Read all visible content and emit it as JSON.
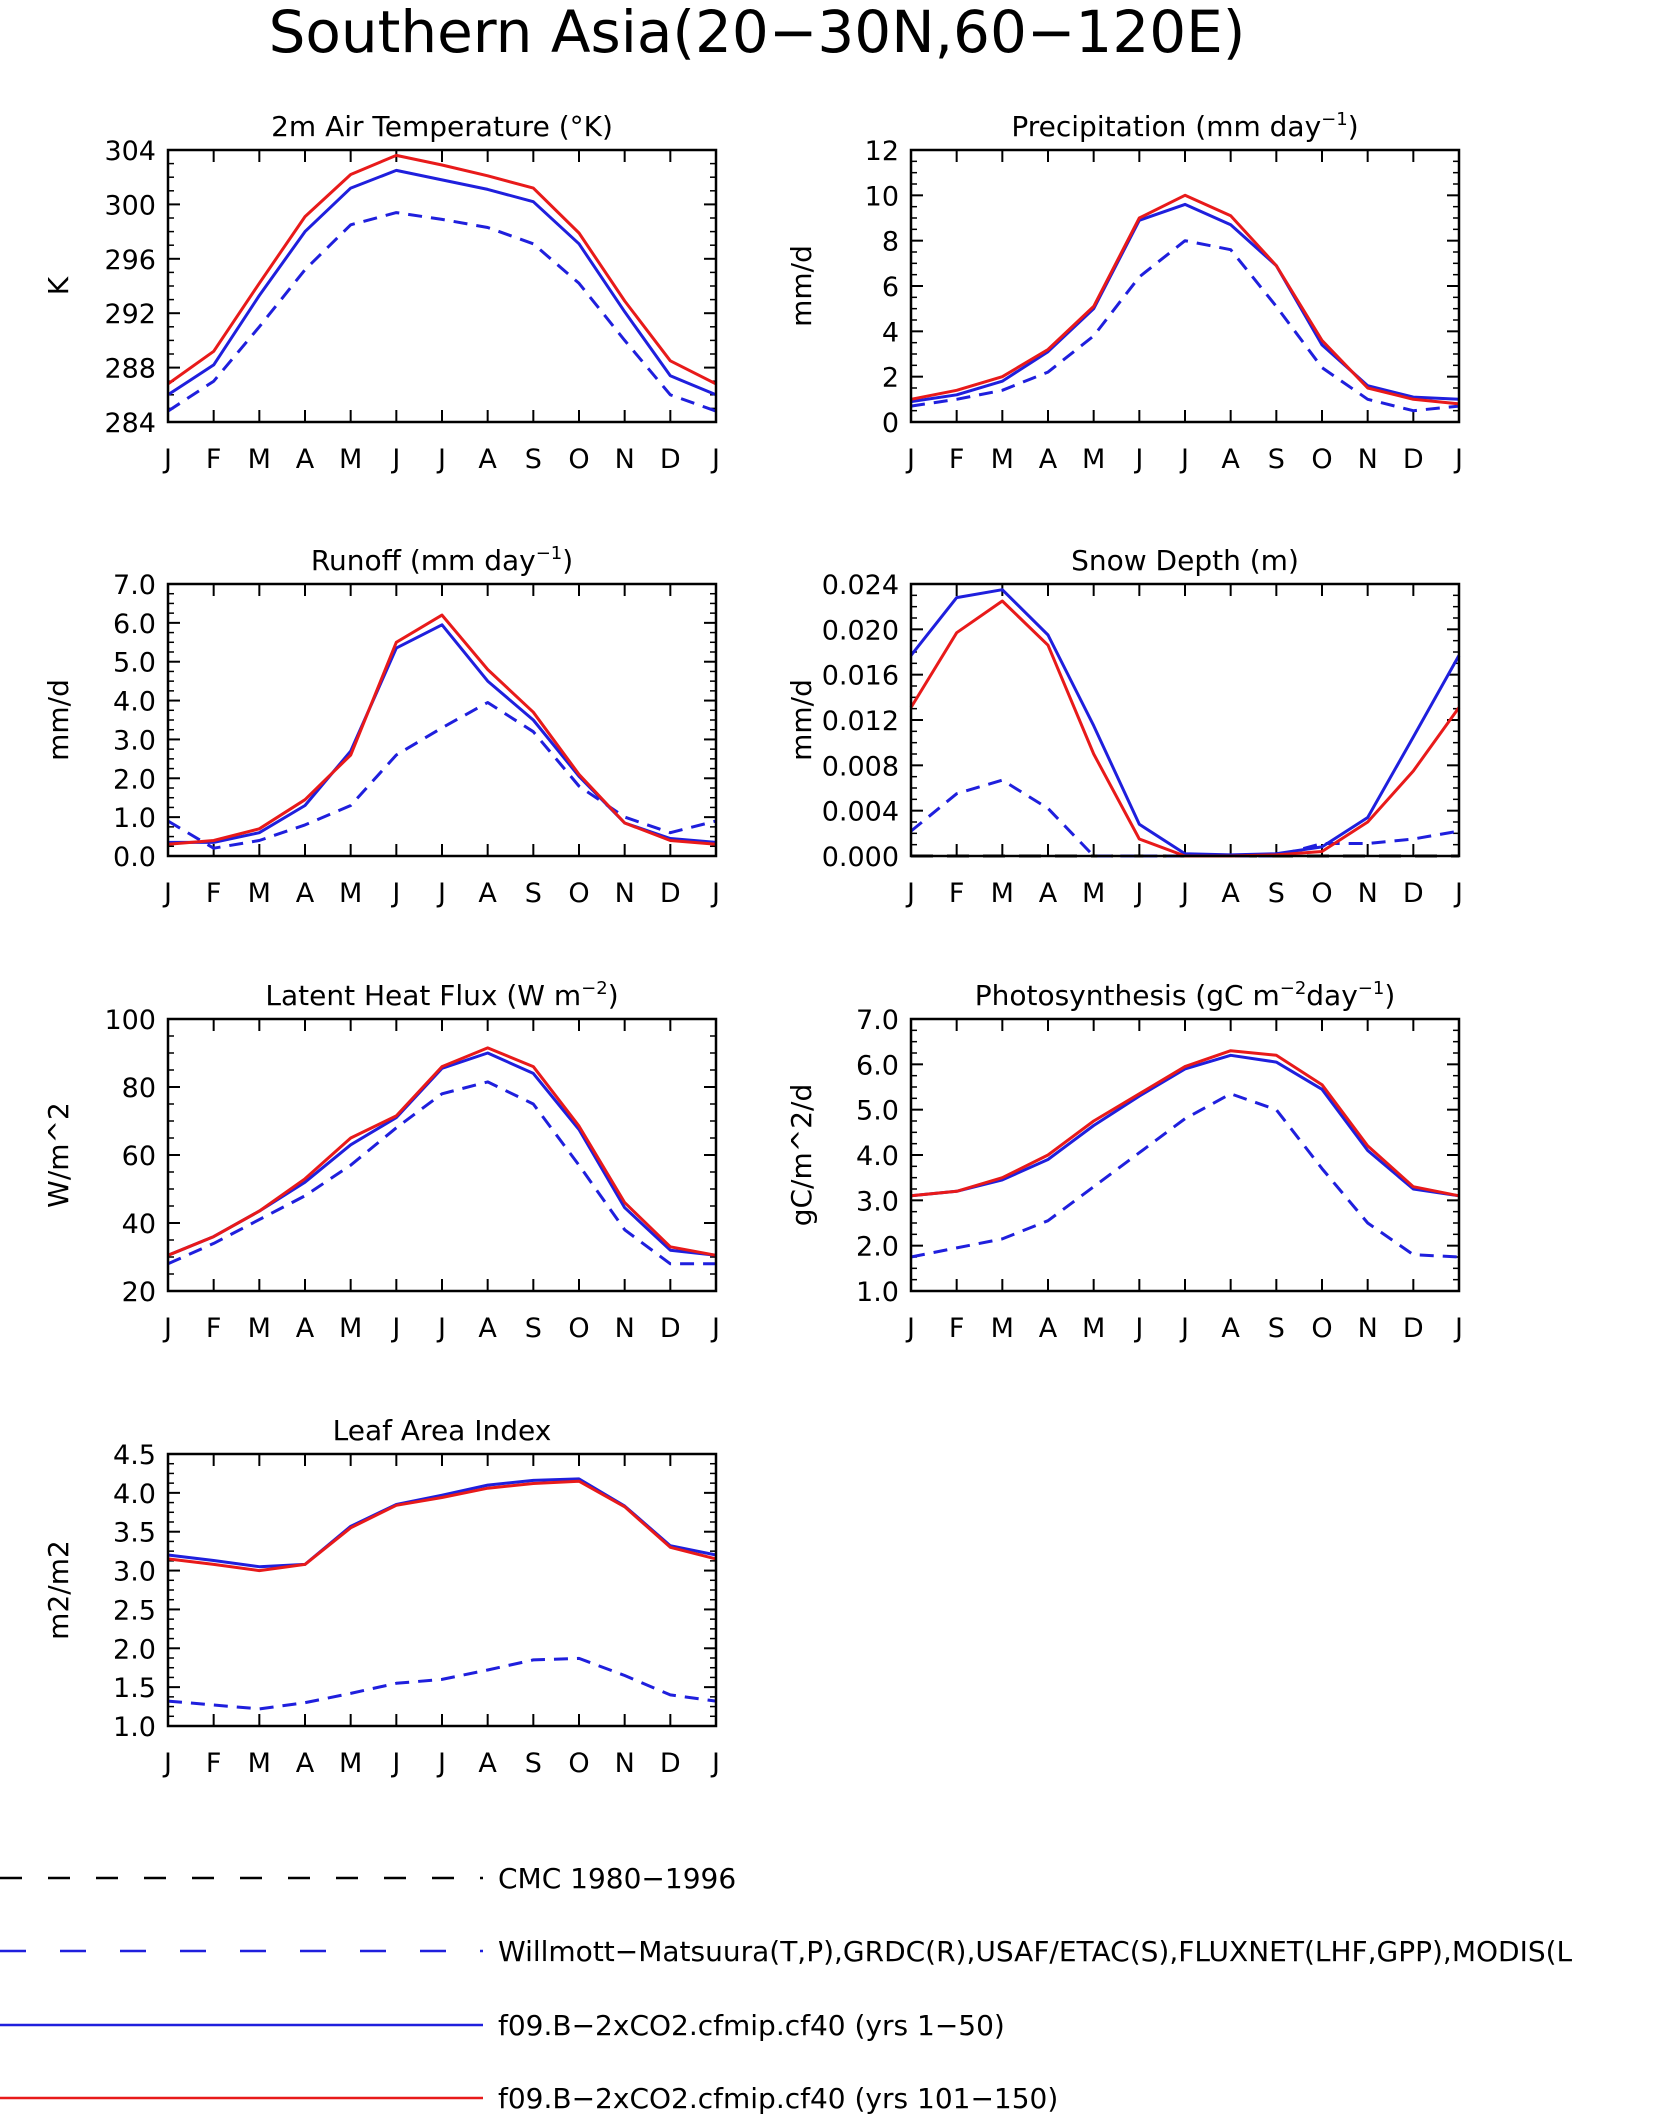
{
  "page_title": "Southern Asia(20−30N,60−120E)",
  "colors": {
    "obs_dash_black": "#000000",
    "obs_dash_blue": "#1f1fdd",
    "run1": "#1f1fdd",
    "run2": "#e81a1a"
  },
  "legend": {
    "items": [
      {
        "label": "CMC 1980−1996",
        "style": "dashed",
        "color": "#000000"
      },
      {
        "label": "Willmott−Matsuura(T,P),GRDC(R),USAF/ETAC(S),FLUXNET(LHF,GPP),MODIS(L",
        "style": "dashed",
        "color": "#1f1fdd"
      },
      {
        "label": "f09.B−2xCO2.cfmip.cf40 (yrs 1−50)",
        "style": "solid",
        "color": "#1f1fdd"
      },
      {
        "label": "f09.B−2xCO2.cfmip.cf40 (yrs 101−150)",
        "style": "solid",
        "color": "#e81a1a"
      }
    ]
  },
  "chart_data": [
    {
      "type": "line",
      "title": "2m Air Temperature (°K)",
      "ylabel": "K",
      "x": [
        "J",
        "F",
        "M",
        "A",
        "M",
        "J",
        "J",
        "A",
        "S",
        "O",
        "N",
        "D",
        "J"
      ],
      "ylim": [
        284,
        304
      ],
      "yticks": [
        "284",
        "288",
        "292",
        "296",
        "300",
        "304"
      ],
      "series": [
        {
          "style": "obs_dash_blue",
          "values": [
            284.8,
            287.0,
            291.0,
            295.2,
            298.5,
            299.4,
            298.9,
            298.3,
            297.1,
            294.2,
            290.0,
            286.0,
            284.8
          ]
        },
        {
          "style": "run1",
          "values": [
            286.0,
            288.2,
            293.3,
            298.0,
            301.2,
            302.5,
            301.8,
            301.1,
            300.2,
            297.1,
            292.1,
            287.4,
            286.0
          ]
        },
        {
          "style": "run2",
          "values": [
            286.8,
            289.2,
            294.2,
            299.1,
            302.2,
            303.6,
            302.9,
            302.1,
            301.2,
            297.9,
            292.9,
            288.5,
            286.8
          ]
        }
      ]
    },
    {
      "type": "line",
      "title": "Precipitation (mm day",
      "title_sup": "−1",
      "title_end": ")",
      "ylabel": "mm/d",
      "x": [
        "J",
        "F",
        "M",
        "A",
        "M",
        "J",
        "J",
        "A",
        "S",
        "O",
        "N",
        "D",
        "J"
      ],
      "ylim": [
        0,
        12
      ],
      "yticks": [
        "0",
        "2",
        "4",
        "6",
        "8",
        "10",
        "12"
      ],
      "series": [
        {
          "style": "obs_dash_blue",
          "values": [
            0.7,
            1.0,
            1.4,
            2.2,
            3.8,
            6.4,
            8.0,
            7.6,
            5.1,
            2.4,
            1.0,
            0.5,
            0.7
          ]
        },
        {
          "style": "run1",
          "values": [
            0.9,
            1.2,
            1.8,
            3.1,
            5.0,
            8.9,
            9.6,
            8.7,
            6.9,
            3.4,
            1.6,
            1.1,
            1.0
          ]
        },
        {
          "style": "run2",
          "values": [
            1.0,
            1.4,
            2.0,
            3.2,
            5.1,
            9.0,
            10.0,
            9.1,
            6.9,
            3.6,
            1.5,
            1.0,
            0.8
          ]
        }
      ]
    },
    {
      "type": "line",
      "title": "Runoff (mm day",
      "title_sup": "−1",
      "title_end": ")",
      "ylabel": "mm/d",
      "x": [
        "J",
        "F",
        "M",
        "A",
        "M",
        "J",
        "J",
        "A",
        "S",
        "O",
        "N",
        "D",
        "J"
      ],
      "ylim": [
        0,
        7
      ],
      "yticks": [
        "0.0",
        "1.0",
        "2.0",
        "3.0",
        "4.0",
        "5.0",
        "6.0",
        "7.0"
      ],
      "series": [
        {
          "style": "obs_dash_blue",
          "values": [
            0.9,
            0.2,
            0.4,
            0.8,
            1.3,
            2.6,
            3.3,
            3.95,
            3.2,
            1.8,
            1.0,
            0.6,
            0.9
          ]
        },
        {
          "style": "run1",
          "values": [
            0.35,
            0.35,
            0.6,
            1.3,
            2.7,
            5.35,
            5.95,
            4.5,
            3.5,
            2.05,
            0.85,
            0.45,
            0.35
          ]
        },
        {
          "style": "run2",
          "values": [
            0.3,
            0.4,
            0.7,
            1.45,
            2.6,
            5.5,
            6.2,
            4.8,
            3.7,
            2.1,
            0.85,
            0.4,
            0.3
          ]
        }
      ]
    },
    {
      "type": "line",
      "title": "Snow Depth (m)",
      "ylabel": "mm/d",
      "x": [
        "J",
        "F",
        "M",
        "A",
        "M",
        "J",
        "J",
        "A",
        "S",
        "O",
        "N",
        "D",
        "J"
      ],
      "ylim": [
        0,
        0.024
      ],
      "yticks": [
        "0.000",
        "0.004",
        "0.008",
        "0.012",
        "0.016",
        "0.020",
        "0.024"
      ],
      "series": [
        {
          "style": "obs_dash_black",
          "values": [
            0,
            0,
            0,
            0,
            0,
            0,
            0,
            0,
            0,
            0,
            0,
            0,
            0
          ]
        },
        {
          "style": "obs_dash_blue",
          "values": [
            0.0022,
            0.0055,
            0.0067,
            0.0042,
            0.0,
            0.0,
            0.0,
            0.0,
            0.0,
            0.0011,
            0.0011,
            0.0015,
            0.0022
          ]
        },
        {
          "style": "run1",
          "values": [
            0.0177,
            0.0228,
            0.0235,
            0.0195,
            0.0115,
            0.0028,
            0.0002,
            0.0001,
            0.0002,
            0.0008,
            0.0034,
            0.0105,
            0.0177
          ]
        },
        {
          "style": "run2",
          "values": [
            0.0131,
            0.0197,
            0.0225,
            0.0186,
            0.009,
            0.0015,
            0.0,
            0.0,
            0.0001,
            0.0004,
            0.003,
            0.0075,
            0.0131
          ]
        }
      ]
    },
    {
      "type": "line",
      "title": "Latent Heat Flux (W m",
      "title_sup": "−2",
      "title_end": ")",
      "ylabel": "W/m^2",
      "x": [
        "J",
        "F",
        "M",
        "A",
        "M",
        "J",
        "J",
        "A",
        "S",
        "O",
        "N",
        "D",
        "J"
      ],
      "ylim": [
        20,
        100
      ],
      "yticks": [
        "20",
        "40",
        "60",
        "80",
        "100"
      ],
      "series": [
        {
          "style": "obs_dash_blue",
          "values": [
            28,
            34,
            41,
            48,
            57,
            68,
            78,
            81.5,
            75,
            57,
            38,
            28,
            28
          ]
        },
        {
          "style": "run1",
          "values": [
            30.5,
            36,
            43.5,
            52,
            63,
            71,
            85.5,
            90,
            84,
            67.5,
            44.5,
            32,
            30.5
          ]
        },
        {
          "style": "run2",
          "values": [
            30.5,
            36,
            43.5,
            53,
            65,
            71.5,
            86,
            91.5,
            86,
            68.5,
            46,
            33,
            30.5
          ]
        }
      ]
    },
    {
      "type": "line",
      "title": "Photosynthesis (gC m",
      "title_sup": "−2",
      "title_mid": "day",
      "title_sup2": "−1",
      "title_end": ")",
      "ylabel": "gC/m^2/d",
      "x": [
        "J",
        "F",
        "M",
        "A",
        "M",
        "J",
        "J",
        "A",
        "S",
        "O",
        "N",
        "D",
        "J"
      ],
      "ylim": [
        1,
        7
      ],
      "yticks": [
        "1.0",
        "2.0",
        "3.0",
        "4.0",
        "5.0",
        "6.0",
        "7.0"
      ],
      "series": [
        {
          "style": "obs_dash_blue",
          "values": [
            1.75,
            1.95,
            2.15,
            2.55,
            3.3,
            4.05,
            4.8,
            5.35,
            5.0,
            3.7,
            2.5,
            1.8,
            1.75
          ]
        },
        {
          "style": "run1",
          "values": [
            3.1,
            3.2,
            3.45,
            3.9,
            4.65,
            5.3,
            5.9,
            6.2,
            6.05,
            5.45,
            4.1,
            3.25,
            3.1
          ]
        },
        {
          "style": "run2",
          "values": [
            3.1,
            3.2,
            3.5,
            4.0,
            4.75,
            5.35,
            5.95,
            6.3,
            6.2,
            5.55,
            4.2,
            3.3,
            3.1
          ]
        }
      ]
    },
    {
      "type": "line",
      "title": "Leaf Area Index",
      "ylabel": "m2/m2",
      "x": [
        "J",
        "F",
        "M",
        "A",
        "M",
        "J",
        "J",
        "A",
        "S",
        "O",
        "N",
        "D",
        "J"
      ],
      "ylim": [
        1,
        4.5
      ],
      "yticks": [
        "1.0",
        "1.5",
        "2.0",
        "2.5",
        "3.0",
        "3.5",
        "4.0",
        "4.5"
      ],
      "series": [
        {
          "style": "obs_dash_blue",
          "values": [
            1.32,
            1.27,
            1.22,
            1.3,
            1.42,
            1.55,
            1.6,
            1.72,
            1.85,
            1.87,
            1.65,
            1.4,
            1.32
          ]
        },
        {
          "style": "run1",
          "values": [
            3.2,
            3.13,
            3.05,
            3.08,
            3.57,
            3.85,
            3.97,
            4.1,
            4.16,
            4.18,
            3.83,
            3.32,
            3.2
          ]
        },
        {
          "style": "run2",
          "values": [
            3.15,
            3.08,
            3.0,
            3.08,
            3.55,
            3.84,
            3.94,
            4.06,
            4.12,
            4.15,
            3.82,
            3.3,
            3.15
          ]
        }
      ]
    }
  ]
}
